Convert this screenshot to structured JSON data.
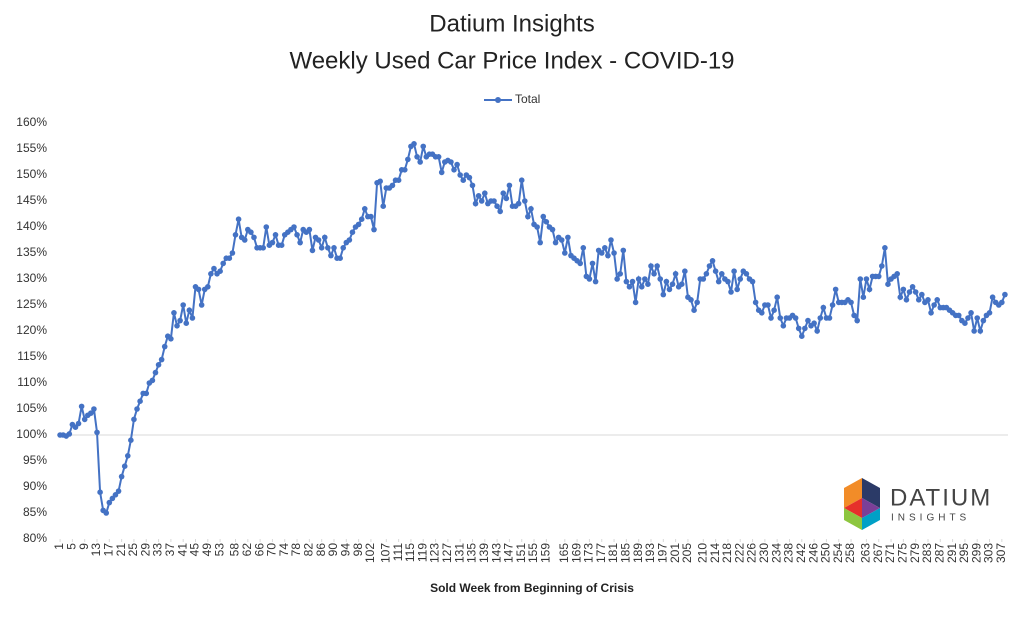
{
  "chart_data": {
    "type": "line",
    "title": "Datium Insights",
    "subtitle": "Weekly Used Car Price Index - COVID-19",
    "xlabel": "Sold Week from Beginning of Crisis",
    "x_axis_at": 100,
    "logo": {
      "name": "DATIUM",
      "tagline": "INSIGHTS"
    },
    "legend": "top",
    "xlim": [
      0,
      309
    ],
    "ylim": [
      80,
      160
    ],
    "yticks": [
      {
        "value": 80,
        "label": "80%"
      },
      {
        "value": 85,
        "label": "85%"
      },
      {
        "value": 90,
        "label": "90%"
      },
      {
        "value": 95,
        "label": "95%"
      },
      {
        "value": 100,
        "label": "100%"
      },
      {
        "value": 105,
        "label": "105%"
      },
      {
        "value": 110,
        "label": "110%"
      },
      {
        "value": 115,
        "label": "115%"
      },
      {
        "value": 120,
        "label": "120%"
      },
      {
        "value": 125,
        "label": "125%"
      },
      {
        "value": 130,
        "label": "130%"
      },
      {
        "value": 135,
        "label": "135%"
      },
      {
        "value": 140,
        "label": "140%"
      },
      {
        "value": 145,
        "label": "145%"
      },
      {
        "value": 150,
        "label": "150%"
      },
      {
        "value": 155,
        "label": "155%"
      },
      {
        "value": 160,
        "label": "160%"
      }
    ],
    "xticks": [
      1,
      5,
      9,
      13,
      17,
      21,
      25,
      29,
      33,
      37,
      41,
      45,
      49,
      53,
      58,
      62,
      66,
      70,
      74,
      78,
      82,
      86,
      90,
      94,
      98,
      102,
      107,
      111,
      115,
      119,
      123,
      127,
      131,
      135,
      139,
      143,
      147,
      151,
      155,
      159,
      165,
      169,
      173,
      177,
      181,
      185,
      189,
      193,
      197,
      201,
      205,
      210,
      214,
      218,
      222,
      226,
      230,
      234,
      238,
      242,
      246,
      250,
      254,
      258,
      263,
      267,
      271,
      275,
      279,
      283,
      287,
      291,
      295,
      299,
      303,
      307
    ],
    "x": [
      1,
      2,
      3,
      4,
      5,
      6,
      7,
      8,
      9,
      10,
      11,
      12,
      13,
      14,
      15,
      16,
      17,
      18,
      19,
      20,
      21,
      22,
      23,
      24,
      25,
      26,
      27,
      28,
      29,
      30,
      31,
      32,
      33,
      34,
      35,
      36,
      37,
      38,
      39,
      40,
      41,
      42,
      43,
      44,
      45,
      46,
      47,
      48,
      49,
      50,
      51,
      52,
      53,
      54,
      55,
      56,
      57,
      58,
      59,
      60,
      61,
      62,
      63,
      64,
      65,
      66,
      67,
      68,
      69,
      70,
      71,
      72,
      73,
      74,
      75,
      76,
      77,
      78,
      79,
      80,
      81,
      82,
      83,
      84,
      85,
      86,
      87,
      88,
      89,
      90,
      91,
      92,
      93,
      94,
      95,
      96,
      97,
      98,
      99,
      100,
      101,
      102,
      103,
      104,
      105,
      106,
      107,
      108,
      109,
      110,
      111,
      112,
      113,
      114,
      115,
      116,
      117,
      118,
      119,
      120,
      121,
      122,
      123,
      124,
      125,
      126,
      127,
      128,
      129,
      130,
      131,
      132,
      133,
      134,
      135,
      136,
      137,
      138,
      139,
      140,
      141,
      142,
      143,
      144,
      145,
      146,
      147,
      148,
      149,
      150,
      151,
      152,
      153,
      154,
      155,
      156,
      157,
      158,
      159,
      160,
      161,
      162,
      163,
      164,
      165,
      166,
      167,
      168,
      169,
      170,
      171,
      172,
      173,
      174,
      175,
      176,
      177,
      178,
      179,
      180,
      181,
      182,
      183,
      184,
      185,
      186,
      187,
      188,
      189,
      190,
      191,
      192,
      193,
      194,
      195,
      196,
      197,
      198,
      199,
      200,
      201,
      202,
      203,
      204,
      205,
      206,
      207,
      208,
      209,
      210,
      211,
      212,
      213,
      214,
      215,
      216,
      217,
      218,
      219,
      220,
      221,
      222,
      223,
      224,
      225,
      226,
      227,
      228,
      229,
      230,
      231,
      232,
      233,
      234,
      235,
      236,
      237,
      238,
      239,
      240,
      241,
      242,
      243,
      244,
      245,
      246,
      247,
      248,
      249,
      250,
      251,
      252,
      253,
      254,
      255,
      256,
      257,
      258,
      259,
      260,
      261,
      262,
      263,
      264,
      265,
      266,
      267,
      268,
      269,
      270,
      271,
      272,
      273,
      274,
      275,
      276,
      277,
      278,
      279,
      280,
      281,
      282,
      283,
      284,
      285,
      286,
      287,
      288,
      289,
      290,
      291,
      292,
      293,
      294,
      295,
      296,
      297,
      298,
      299,
      300,
      301,
      302,
      303,
      304,
      305,
      306,
      307,
      308
    ],
    "series": [
      {
        "name": "Total",
        "color": "#4472c4",
        "values": [
          100,
          100,
          99.8,
          100.2,
          102,
          101.5,
          102.2,
          105.5,
          103,
          103.8,
          104.2,
          105,
          100.5,
          89,
          85.5,
          85,
          87,
          87.8,
          88.5,
          89.2,
          92,
          94,
          96,
          99,
          103,
          105,
          106.5,
          108,
          108,
          110,
          110.5,
          112,
          113.5,
          114.5,
          117,
          119,
          118.5,
          123.5,
          121,
          122,
          125,
          121.5,
          124,
          122.5,
          128.5,
          128,
          125,
          128,
          128.5,
          131,
          132,
          131,
          131.5,
          133,
          134,
          134,
          135,
          138.5,
          141.5,
          138,
          137.5,
          139.5,
          139,
          138,
          136,
          136,
          136,
          140,
          136.5,
          137,
          138.5,
          136.5,
          136.5,
          138.5,
          139,
          139.5,
          140,
          138.5,
          137,
          139.5,
          139,
          139.5,
          135.5,
          138,
          137.5,
          136,
          138,
          136,
          134.5,
          136,
          134,
          134,
          136,
          137,
          137.5,
          139,
          140,
          140.5,
          141.5,
          143.5,
          142,
          142,
          139.5,
          148.5,
          148.8,
          144,
          147.5,
          147.5,
          148,
          149,
          149,
          151,
          151,
          153,
          155.5,
          156,
          153.5,
          152.5,
          155.5,
          153.5,
          154,
          154,
          153.5,
          153.5,
          150.5,
          152.5,
          152.8,
          152.5,
          151,
          152,
          150,
          149,
          150,
          149.5,
          148,
          144.5,
          146,
          145,
          146.5,
          144.5,
          145,
          145,
          144,
          143,
          146.5,
          145.5,
          148,
          144,
          144,
          144.5,
          149,
          145,
          142,
          143.5,
          140.5,
          140,
          137,
          142,
          141,
          140,
          139.5,
          137,
          138,
          137.5,
          135,
          138,
          134.5,
          134,
          133.5,
          133,
          136,
          130.5,
          130,
          133,
          129.5,
          135.5,
          135,
          136,
          134.5,
          137.5,
          135,
          130,
          131,
          135.5,
          129.5,
          128.5,
          129.5,
          125.5,
          130,
          128.5,
          130,
          129,
          132.5,
          131,
          132.5,
          130,
          127,
          129.5,
          128,
          129,
          131,
          128.5,
          129,
          131.5,
          126.5,
          126,
          124,
          125.5,
          130,
          130,
          131,
          132.5,
          133.5,
          131.5,
          129.5,
          131,
          130,
          129.5,
          127.5,
          131.5,
          128,
          130,
          131.5,
          131,
          130,
          129.5,
          125.5,
          124,
          123.5,
          125,
          125,
          122.5,
          124,
          126.5,
          122.5,
          121,
          122.5,
          122.5,
          123,
          122.5,
          120.5,
          119,
          120.5,
          122,
          121,
          121.5,
          120,
          122.5,
          124.5,
          122.5,
          122.5,
          125,
          128,
          125.5,
          125.5,
          125.5,
          126,
          125.5,
          123,
          122,
          130,
          126.5,
          130,
          128,
          130.5,
          130.5,
          130.5,
          132.5,
          136,
          129,
          130,
          130.5,
          131,
          126.5,
          128,
          126,
          127.5,
          128.5,
          127.5,
          126,
          127,
          125.5,
          126,
          123.5,
          125,
          126,
          124.5,
          124.5,
          124.5,
          124,
          123.5,
          123,
          123,
          122,
          121.5,
          122.5,
          123.5,
          120,
          122.5,
          120,
          122,
          123,
          123.5,
          126.5,
          125.5,
          125,
          125.5,
          127
        ]
      }
    ]
  }
}
